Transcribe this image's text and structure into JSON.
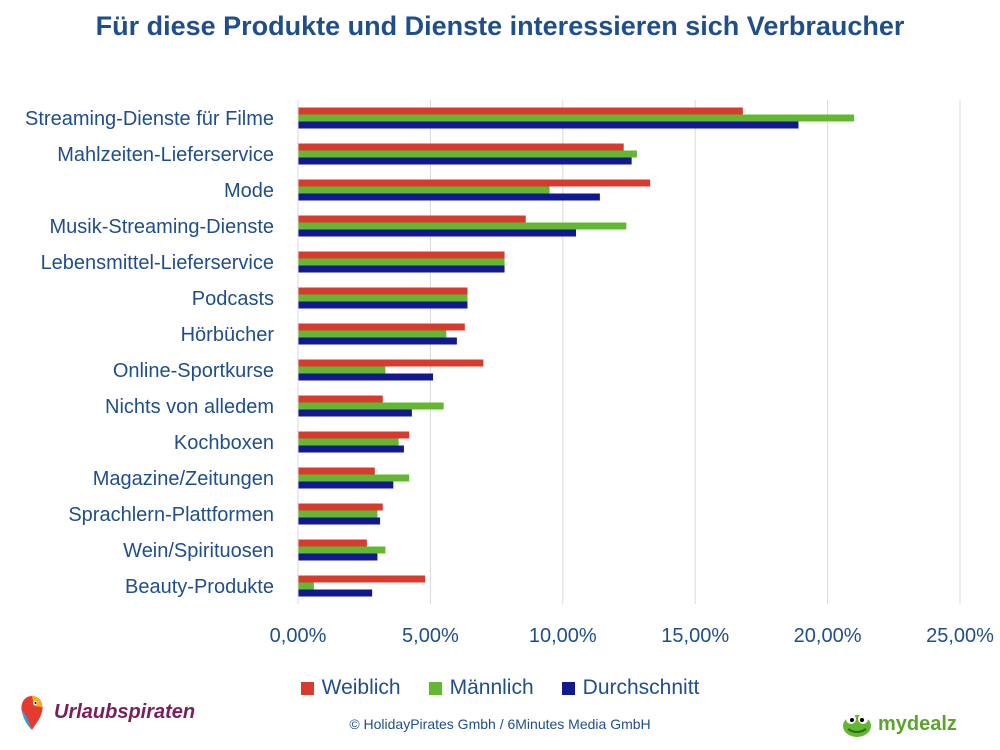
{
  "chart_data": {
    "type": "bar",
    "orientation": "horizontal",
    "title": "Für diese Produkte und Dienste interessieren sich Verbraucher",
    "categories": [
      "Streaming-Dienste für Filme",
      "Mahlzeiten-Lieferservice",
      "Mode",
      "Musik-Streaming-Dienste",
      "Lebensmittel-Lieferservice",
      "Podcasts",
      "Hörbücher",
      "Online-Sportkurse",
      "Nichts von alledem",
      "Kochboxen",
      "Magazine/Zeitungen",
      "Sprachlern-Plattformen",
      "Wein/Spirituosen",
      "Beauty-Produkte"
    ],
    "series": [
      {
        "name": "Weiblich",
        "color": "#d63b2e",
        "values": [
          16.8,
          12.3,
          13.3,
          8.6,
          7.8,
          6.4,
          6.3,
          7.0,
          3.2,
          4.2,
          2.9,
          3.2,
          2.6,
          4.8
        ]
      },
      {
        "name": "Männlich",
        "color": "#62b931",
        "values": [
          21.0,
          12.8,
          9.5,
          12.4,
          7.8,
          6.4,
          5.6,
          3.3,
          5.5,
          3.8,
          4.2,
          3.0,
          3.3,
          0.6
        ]
      },
      {
        "name": "Durchschnitt",
        "color": "#12198f",
        "values": [
          18.9,
          12.6,
          11.4,
          10.5,
          7.8,
          6.4,
          6.0,
          5.1,
          4.3,
          4.0,
          3.6,
          3.1,
          3.0,
          2.8
        ]
      }
    ],
    "xlim": [
      0,
      25
    ],
    "xticks": [
      "0,00%",
      "5,00%",
      "10,00%",
      "15,00%",
      "20,00%",
      "25,00%"
    ],
    "tick_values": [
      0,
      5,
      10,
      15,
      20,
      25
    ],
    "grid": true,
    "legend_position": "bottom"
  },
  "footer": {
    "copyright": "© HolidayPirates Gmbh / 6Minutes Media GmbH",
    "logo_left": "Urlaubspiraten",
    "logo_right": "mydealz"
  }
}
